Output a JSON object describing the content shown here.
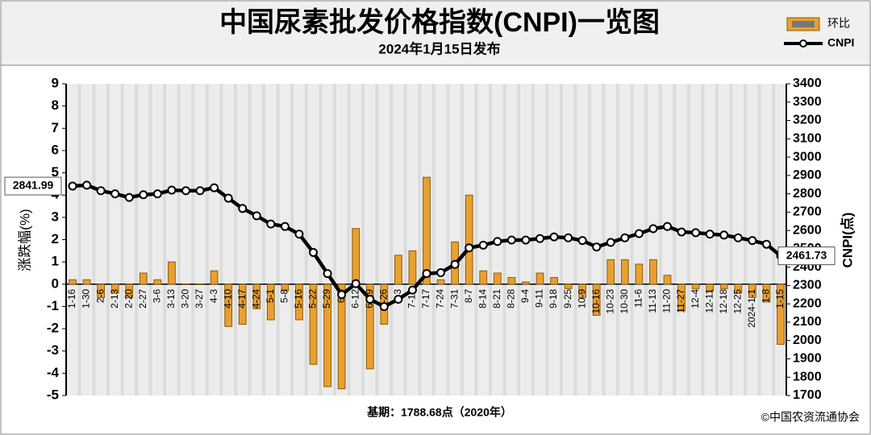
{
  "chart_data": {
    "type": "bar_line",
    "title": "中国尿素批发价格指数(CNPI)一览图",
    "subtitle": "2024年1月15日发布",
    "ylabel": "涨跌幅(%)",
    "y2label": "CNPI(点)",
    "footnote": "基期：1788.68点（2020年）",
    "source": "©中国农资流通协会",
    "categories": [
      "1-16",
      "1-30",
      "2-6",
      "2-13",
      "2-20",
      "2-27",
      "3-6",
      "3-13",
      "3-20",
      "3-27",
      "4-3",
      "4-10",
      "4-17",
      "4-24",
      "5-1",
      "5-8",
      "5-16",
      "5-22",
      "5-29",
      "6-5",
      "6-12",
      "6-19",
      "6-26",
      "7-3",
      "7-10",
      "7-17",
      "7-24",
      "7-31",
      "8-7",
      "8-14",
      "8-21",
      "8-28",
      "9-4",
      "9-11",
      "9-18",
      "9-25",
      "10-9",
      "10-16",
      "10-23",
      "10-30",
      "11-6",
      "11-13",
      "11-20",
      "11-27",
      "12-4",
      "12-11",
      "12-18",
      "12-25",
      "2024-1-1",
      "1-8",
      "1-15"
    ],
    "series": [
      {
        "name": "环比",
        "color": "#e8a030",
        "axis": "y",
        "values": [
          0.2,
          0.2,
          -0.6,
          -0.4,
          -0.6,
          0.5,
          0.2,
          1.0,
          0,
          0,
          0.6,
          -1.9,
          -1.8,
          -1.1,
          -1.6,
          -0.3,
          -1.6,
          -3.6,
          -4.6,
          -4.7,
          2.5,
          -3.8,
          -1.8,
          1.3,
          1.5,
          4.8,
          0.2,
          1.9,
          4.0,
          0.6,
          0.5,
          0.3,
          0.1,
          0.5,
          0.3,
          -0.2,
          -0.6,
          -1.4,
          1.1,
          1.1,
          0.9,
          1.1,
          0.4,
          -1.2,
          -0.2,
          -0.3,
          -0.2,
          -0.4,
          -0.6,
          -0.8,
          -2.7
        ]
      },
      {
        "name": "CNPI",
        "color": "#000000",
        "axis": "y2",
        "values": [
          2841.99,
          2847,
          2817,
          2800,
          2780,
          2795,
          2800,
          2820,
          2817,
          2817,
          2833,
          2776,
          2720,
          2680,
          2635,
          2622,
          2580,
          2480,
          2365,
          2250,
          2310,
          2225,
          2185,
          2225,
          2275,
          2365,
          2370,
          2415,
          2505,
          2520,
          2540,
          2548,
          2548,
          2556,
          2565,
          2560,
          2545,
          2510,
          2535,
          2560,
          2583,
          2610,
          2622,
          2592,
          2588,
          2580,
          2575,
          2560,
          2545,
          2525,
          2461.73
        ],
        "value_labels": [
          "2841.99",
          null,
          null,
          null,
          null,
          null,
          null,
          null,
          null,
          null,
          null,
          null,
          null,
          null,
          null,
          null,
          null,
          null,
          null,
          null,
          null,
          null,
          null,
          null,
          null,
          null,
          null,
          null,
          null,
          null,
          null,
          null,
          null,
          null,
          null,
          null,
          null,
          null,
          null,
          null,
          null,
          null,
          null,
          null,
          null,
          null,
          null,
          null,
          null,
          null,
          "2461.73"
        ]
      }
    ],
    "ylim": [
      -5,
      9
    ],
    "yticks": [
      -5,
      -4,
      -3,
      -2,
      -1,
      0,
      1,
      2,
      3,
      4,
      5,
      6,
      7,
      8,
      9
    ],
    "y2lim": [
      1700,
      3400
    ],
    "y2ticks": [
      1700,
      1800,
      1900,
      2000,
      2100,
      2200,
      2300,
      2400,
      2500,
      2600,
      2700,
      2800,
      2900,
      3000,
      3100,
      3200,
      3300,
      3400
    ]
  }
}
